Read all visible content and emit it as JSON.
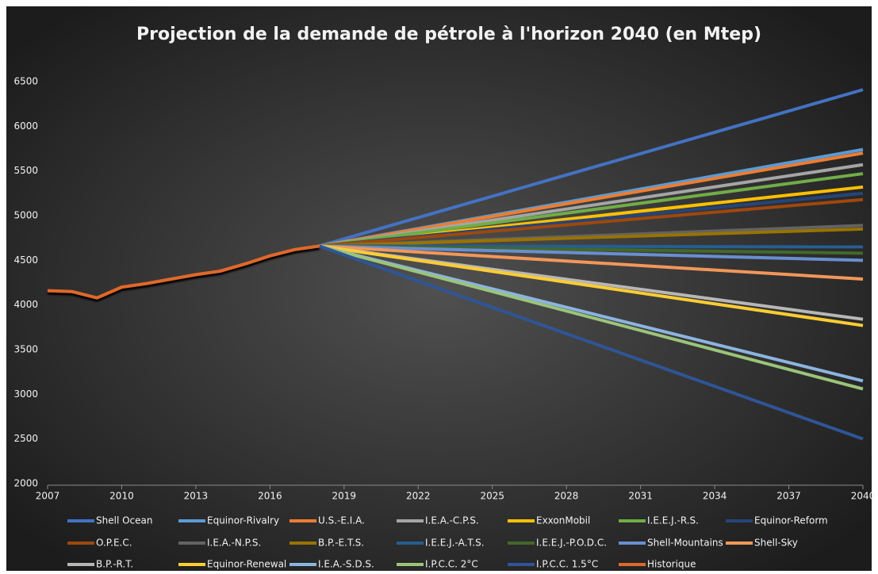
{
  "chart_data": {
    "type": "line",
    "title": "Projection de la demande de pétrole à l'horizon 2040 (en Mtep)",
    "xlim": [
      2007,
      2040
    ],
    "xticks": [
      2007,
      2010,
      2013,
      2016,
      2019,
      2022,
      2025,
      2028,
      2031,
      2034,
      2037,
      2040
    ],
    "ylim": [
      2000,
      6500
    ],
    "yticks": [
      2000,
      2500,
      3000,
      3500,
      4000,
      4500,
      5000,
      5500,
      6000,
      6500
    ],
    "grid": false,
    "legend": "bottom",
    "series": [
      {
        "name": "Shell Ocean",
        "color": "#4472c4",
        "x": [
          2018,
          2040
        ],
        "values": [
          4660,
          6410
        ]
      },
      {
        "name": "Equinor-Rivalry",
        "color": "#5b9bd5",
        "x": [
          2018,
          2040
        ],
        "values": [
          4660,
          5740
        ]
      },
      {
        "name": "U.S.-E.I.A.",
        "color": "#ed7d31",
        "x": [
          2018,
          2040
        ],
        "values": [
          4660,
          5700
        ]
      },
      {
        "name": "I.E.A.-C.P.S.",
        "color": "#a5a5a5",
        "x": [
          2018,
          2040
        ],
        "values": [
          4660,
          5570
        ]
      },
      {
        "name": "ExxonMobil",
        "color": "#ffc000",
        "x": [
          2018,
          2040
        ],
        "values": [
          4660,
          5320
        ]
      },
      {
        "name": "I.E.E.J.-R.S.",
        "color": "#70ad47",
        "x": [
          2018,
          2040
        ],
        "values": [
          4660,
          5470
        ]
      },
      {
        "name": "Equinor-Reform",
        "color": "#264478",
        "x": [
          2018,
          2040
        ],
        "values": [
          4660,
          5250
        ]
      },
      {
        "name": "O.P.E.C.",
        "color": "#9e480e",
        "x": [
          2018,
          2040
        ],
        "values": [
          4660,
          5180
        ]
      },
      {
        "name": "I.E.A.-N.P.S.",
        "color": "#636363",
        "x": [
          2018,
          2040
        ],
        "values": [
          4660,
          4890
        ]
      },
      {
        "name": "B.P.-E.T.S.",
        "color": "#997300",
        "x": [
          2018,
          2040
        ],
        "values": [
          4660,
          4850
        ]
      },
      {
        "name": "I.E.E.J.-A.T.S.",
        "color": "#255e91",
        "x": [
          2018,
          2040
        ],
        "values": [
          4660,
          4650
        ]
      },
      {
        "name": "I.E.E.J.-P.O.D.C.",
        "color": "#43682b",
        "x": [
          2018,
          2040
        ],
        "values": [
          4660,
          4580
        ]
      },
      {
        "name": "Shell-Mountains",
        "color": "#698ed0",
        "x": [
          2018,
          2040
        ],
        "values": [
          4660,
          4500
        ]
      },
      {
        "name": "Shell-Sky",
        "color": "#f1975a",
        "x": [
          2018,
          2040
        ],
        "values": [
          4660,
          4290
        ]
      },
      {
        "name": "B.P.-R.T.",
        "color": "#b7b7b7",
        "x": [
          2018,
          2040
        ],
        "values": [
          4660,
          3840
        ]
      },
      {
        "name": "Equinor-Renewal",
        "color": "#ffcd33",
        "x": [
          2018,
          2040
        ],
        "values": [
          4660,
          3770
        ]
      },
      {
        "name": "I.E.A.-S.D.S.",
        "color": "#8cb4e0",
        "x": [
          2018,
          2040
        ],
        "values": [
          4660,
          3150
        ]
      },
      {
        "name": "I.P.C.C. 2°C",
        "color": "#9bc47a",
        "x": [
          2018,
          2040
        ],
        "values": [
          4660,
          3060
        ]
      },
      {
        "name": "I.P.C.C. 1.5°C",
        "color": "#2f5597",
        "x": [
          2018,
          2040
        ],
        "values": [
          4660,
          2500
        ]
      },
      {
        "name": "Historique",
        "color": "#e0672a",
        "x": [
          2007,
          2008,
          2009,
          2010,
          2011,
          2012,
          2013,
          2014,
          2015,
          2016,
          2017,
          2018
        ],
        "values": [
          4160,
          4150,
          4080,
          4200,
          4240,
          4290,
          4340,
          4380,
          4460,
          4550,
          4620,
          4660
        ]
      }
    ]
  }
}
